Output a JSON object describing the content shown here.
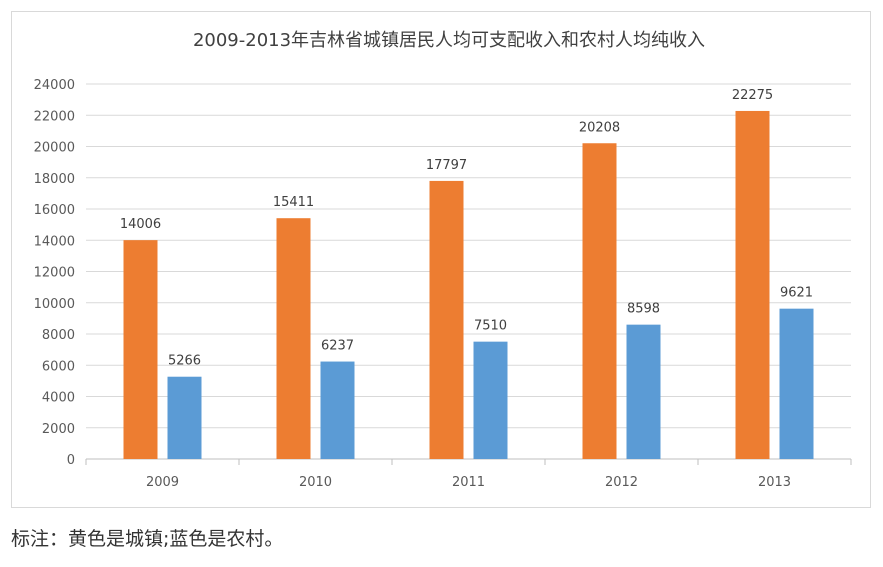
{
  "chart_data": {
    "type": "bar",
    "title": "2009-2013年吉林省城镇居民人均可支配收入和农村人均纯收入",
    "categories": [
      "2009",
      "2010",
      "2011",
      "2012",
      "2013"
    ],
    "series": [
      {
        "values": [
          14006,
          15411,
          17797,
          20208,
          22275
        ],
        "color": "#ED7D31"
      },
      {
        "values": [
          5266,
          6237,
          7510,
          8598,
          9621
        ],
        "color": "#5B9BD5"
      }
    ],
    "ylim": [
      0,
      24000
    ],
    "yticks": [
      0,
      2000,
      4000,
      6000,
      8000,
      10000,
      12000,
      14000,
      16000,
      18000,
      20000,
      22000,
      24000
    ],
    "grid": true,
    "legend": "none",
    "data_labels": true
  },
  "note": "标注：黄色是城镇;蓝色是农村。"
}
